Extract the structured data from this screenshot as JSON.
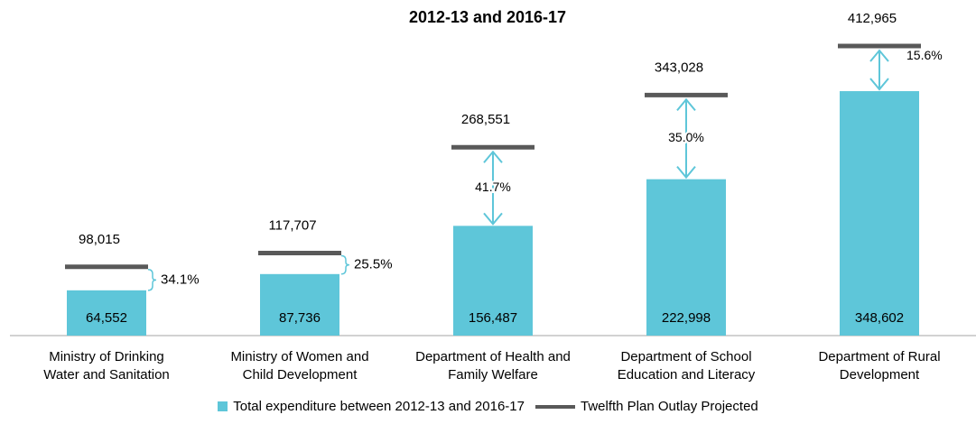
{
  "chart_data": {
    "type": "bar",
    "title": "2012-13 and 2016-17",
    "categories": [
      "Ministry of Drinking\nWater and Sanitation",
      "Ministry of Women and\nChild Development",
      "Department of Health and\nFamily Welfare",
      "Department of School\nEducation and Literacy",
      "Department of Rural\nDevelopment"
    ],
    "series": [
      {
        "name": "Total expenditure between 2012-13 and 2016-17",
        "color": "#5ec6d9",
        "values": [
          64552,
          87736,
          156487,
          222998,
          348602
        ],
        "value_labels": [
          "64,552",
          "87,736",
          "156,487",
          "222,998",
          "348,602"
        ]
      },
      {
        "name": "Twelfth Plan Outlay Projected",
        "color": "#595959",
        "values": [
          98015,
          117707,
          268551,
          343028,
          412965
        ],
        "value_labels": [
          "98,015",
          "117,707",
          "268,551",
          "343,028",
          "412,965"
        ]
      }
    ],
    "gaps": {
      "values": [
        34.1,
        25.5,
        41.7,
        35.0,
        15.6
      ],
      "value_labels": [
        "34.1%",
        "25.5%",
        "41.7%",
        "35.0%",
        "15.6%"
      ]
    }
  }
}
